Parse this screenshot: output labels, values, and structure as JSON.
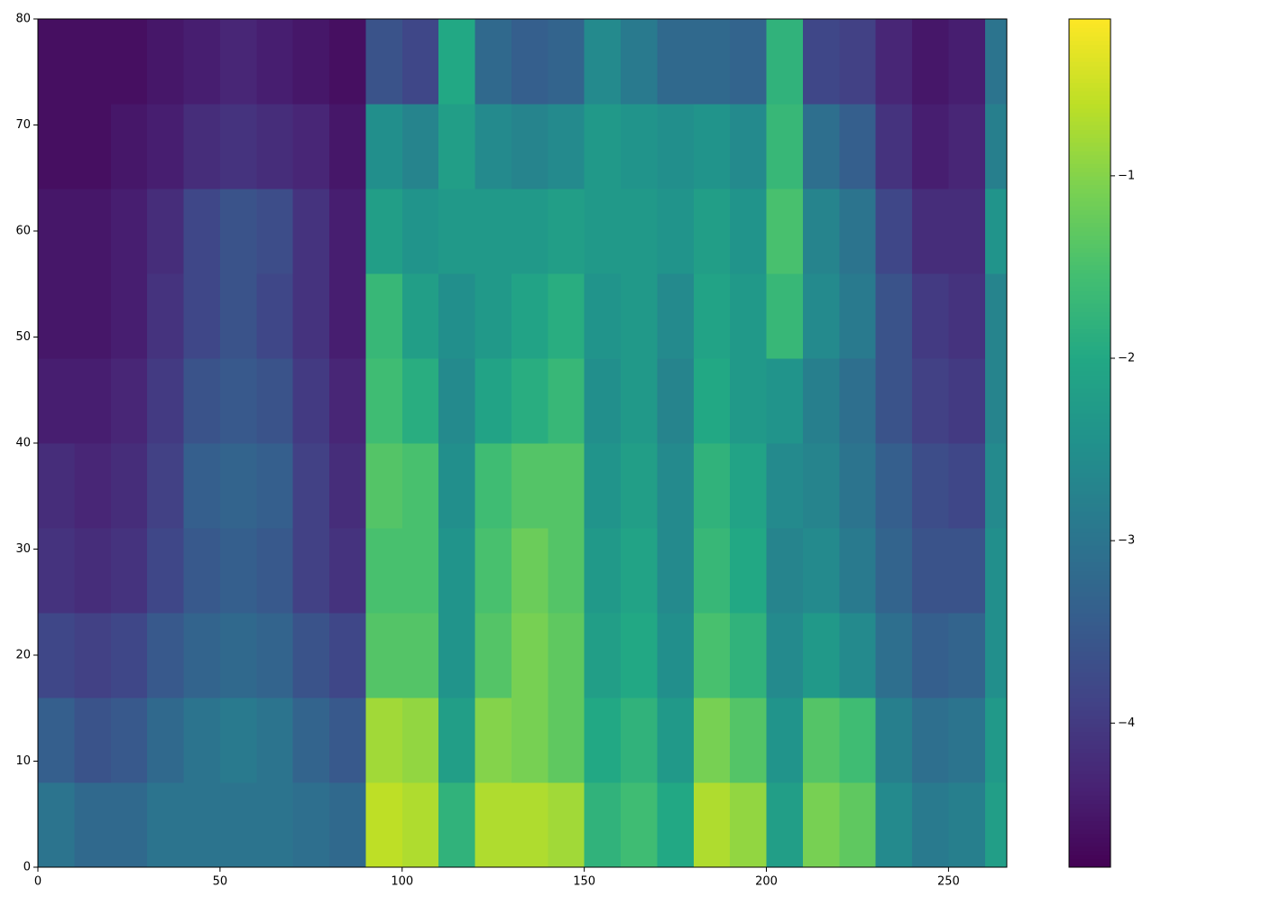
{
  "chart_data": {
    "type": "heatmap",
    "colormap": "viridis",
    "xbins": [
      0,
      10,
      20,
      30,
      40,
      50,
      60,
      70,
      80,
      90,
      100,
      110,
      120,
      130,
      140,
      150,
      160,
      170,
      180,
      190,
      200,
      210,
      220,
      230,
      240,
      250,
      260,
      266
    ],
    "ybins": [
      0,
      8,
      16,
      24,
      32,
      40,
      48,
      56,
      64,
      72,
      80
    ],
    "values": [
      [
        -3.0,
        -3.2,
        -3.2,
        -3.0,
        -3.0,
        -3.0,
        -3.0,
        -3.1,
        -3.2,
        -0.6,
        -0.7,
        -1.8,
        -0.7,
        -0.7,
        -0.8,
        -1.8,
        -1.6,
        -2.0,
        -0.7,
        -0.9,
        -2.2,
        -1.1,
        -1.3,
        -2.6,
        -2.9,
        -2.8,
        -2.2
      ],
      [
        -3.4,
        -3.6,
        -3.5,
        -3.2,
        -3.0,
        -2.9,
        -3.0,
        -3.3,
        -3.5,
        -0.8,
        -0.9,
        -2.2,
        -1.0,
        -1.1,
        -1.3,
        -2.0,
        -1.8,
        -2.3,
        -1.1,
        -1.4,
        -2.4,
        -1.4,
        -1.6,
        -2.8,
        -3.1,
        -3.0,
        -2.3
      ],
      [
        -3.8,
        -3.9,
        -3.8,
        -3.5,
        -3.3,
        -3.2,
        -3.3,
        -3.6,
        -3.8,
        -1.4,
        -1.4,
        -2.4,
        -1.4,
        -1.1,
        -1.3,
        -2.2,
        -2.0,
        -2.5,
        -1.5,
        -1.8,
        -2.6,
        -2.3,
        -2.6,
        -3.1,
        -3.4,
        -3.3,
        -2.5
      ],
      [
        -4.1,
        -4.2,
        -4.1,
        -3.8,
        -3.5,
        -3.4,
        -3.5,
        -3.9,
        -4.1,
        -1.5,
        -1.5,
        -2.4,
        -1.5,
        -1.2,
        -1.4,
        -2.3,
        -2.1,
        -2.6,
        -1.7,
        -2.0,
        -2.7,
        -2.6,
        -2.9,
        -3.3,
        -3.6,
        -3.6,
        -2.5
      ],
      [
        -4.2,
        -4.3,
        -4.2,
        -3.9,
        -3.4,
        -3.3,
        -3.4,
        -3.9,
        -4.2,
        -1.4,
        -1.5,
        -2.5,
        -1.6,
        -1.4,
        -1.4,
        -2.4,
        -2.2,
        -2.6,
        -1.8,
        -2.1,
        -2.6,
        -2.7,
        -3.0,
        -3.4,
        -3.7,
        -3.8,
        -2.6
      ],
      [
        -4.4,
        -4.4,
        -4.3,
        -4.0,
        -3.6,
        -3.5,
        -3.6,
        -4.0,
        -4.3,
        -1.6,
        -1.9,
        -2.6,
        -2.1,
        -1.9,
        -1.7,
        -2.5,
        -2.3,
        -2.7,
        -2.0,
        -2.3,
        -2.4,
        -2.8,
        -3.1,
        -3.6,
        -3.9,
        -4.0,
        -2.7
      ],
      [
        -4.5,
        -4.5,
        -4.4,
        -4.1,
        -3.8,
        -3.6,
        -3.8,
        -4.1,
        -4.4,
        -1.7,
        -2.2,
        -2.5,
        -2.3,
        -2.1,
        -1.9,
        -2.4,
        -2.3,
        -2.6,
        -2.1,
        -2.3,
        -1.7,
        -2.6,
        -2.9,
        -3.6,
        -4.0,
        -4.1,
        -2.7
      ],
      [
        -4.5,
        -4.5,
        -4.4,
        -4.2,
        -3.8,
        -3.6,
        -3.7,
        -4.1,
        -4.4,
        -2.2,
        -2.4,
        -2.3,
        -2.3,
        -2.3,
        -2.2,
        -2.3,
        -2.3,
        -2.4,
        -2.2,
        -2.4,
        -1.5,
        -2.7,
        -3.0,
        -3.8,
        -4.2,
        -4.2,
        -2.4
      ],
      [
        -4.6,
        -4.6,
        -4.5,
        -4.4,
        -4.2,
        -4.1,
        -4.2,
        -4.3,
        -4.5,
        -2.5,
        -2.7,
        -2.2,
        -2.6,
        -2.7,
        -2.6,
        -2.3,
        -2.4,
        -2.5,
        -2.4,
        -2.6,
        -1.7,
        -3.1,
        -3.4,
        -4.1,
        -4.4,
        -4.3,
        -2.8
      ],
      [
        -4.6,
        -4.6,
        -4.6,
        -4.5,
        -4.4,
        -4.3,
        -4.4,
        -4.5,
        -4.6,
        -3.6,
        -3.8,
        -2.0,
        -3.2,
        -3.4,
        -3.3,
        -2.6,
        -2.9,
        -3.2,
        -3.2,
        -3.3,
        -1.8,
        -3.8,
        -3.9,
        -4.3,
        -4.5,
        -4.4,
        -3.0
      ]
    ],
    "xlim": [
      0,
      266
    ],
    "ylim": [
      0,
      80
    ],
    "xticks": [
      0,
      50,
      100,
      150,
      200,
      250
    ],
    "yticks": [
      0,
      10,
      20,
      30,
      40,
      50,
      60,
      70,
      80
    ],
    "clim": [
      -4.79,
      -0.14
    ],
    "cticks": [
      {
        "value": -4,
        "label": "−4"
      },
      {
        "value": -3,
        "label": "−3"
      },
      {
        "value": -2,
        "label": "−2"
      },
      {
        "value": -1,
        "label": "−1"
      }
    ]
  }
}
